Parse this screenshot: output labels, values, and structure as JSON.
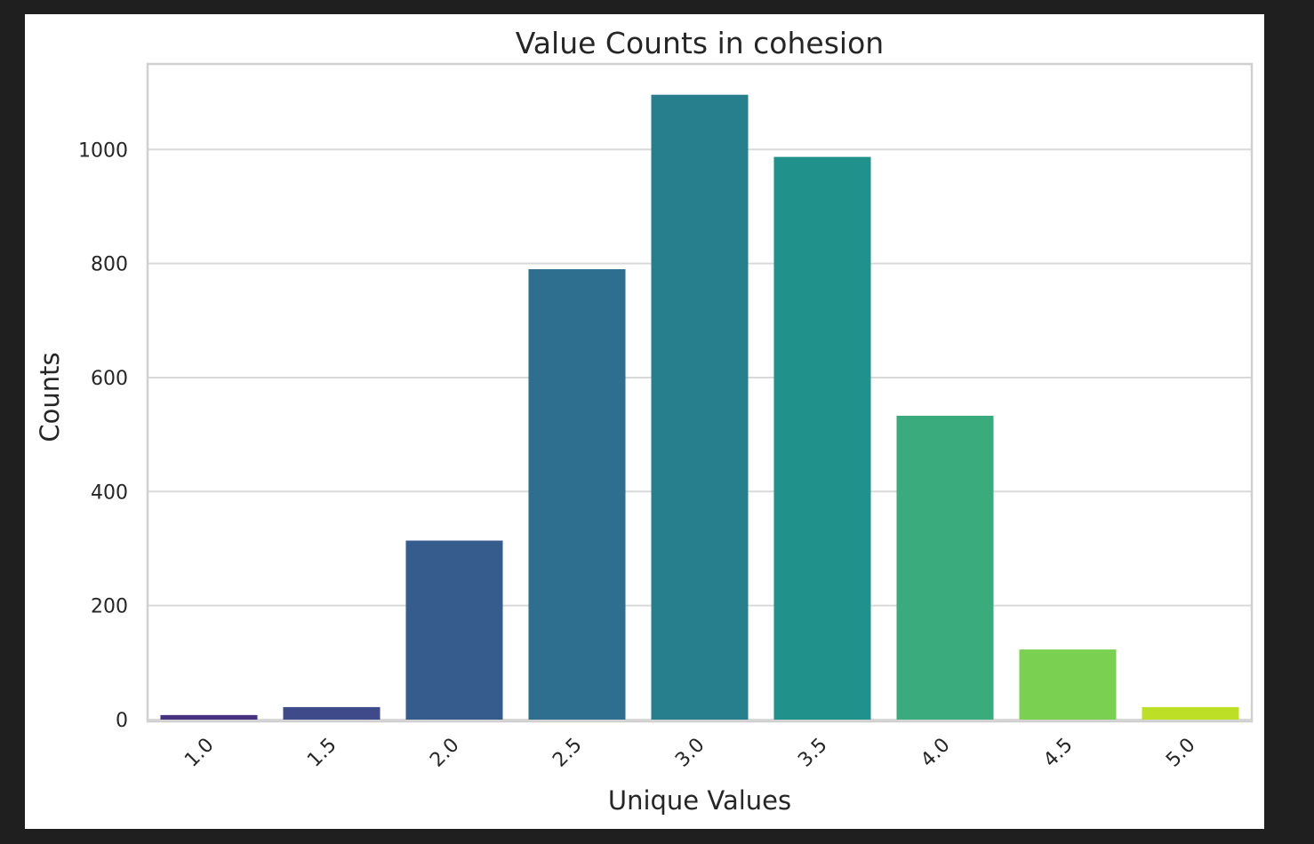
{
  "chart_data": {
    "type": "bar",
    "title": "Value Counts in cohesion",
    "xlabel": "Unique Values",
    "ylabel": "Counts",
    "categories": [
      "1.0",
      "1.5",
      "2.0",
      "2.5",
      "3.0",
      "3.5",
      "4.0",
      "4.5",
      "5.0"
    ],
    "values": [
      8,
      22,
      314,
      790,
      1096,
      987,
      533,
      123,
      22
    ],
    "yticks": [
      0,
      200,
      400,
      600,
      800,
      1000
    ],
    "ylim": [
      0,
      1150
    ],
    "grid": true,
    "colors": [
      "#46327e",
      "#3e4a89",
      "#365c8d",
      "#2e6e8e",
      "#277f8e",
      "#21918c",
      "#3aab7d",
      "#7ad151",
      "#bddf26"
    ]
  }
}
